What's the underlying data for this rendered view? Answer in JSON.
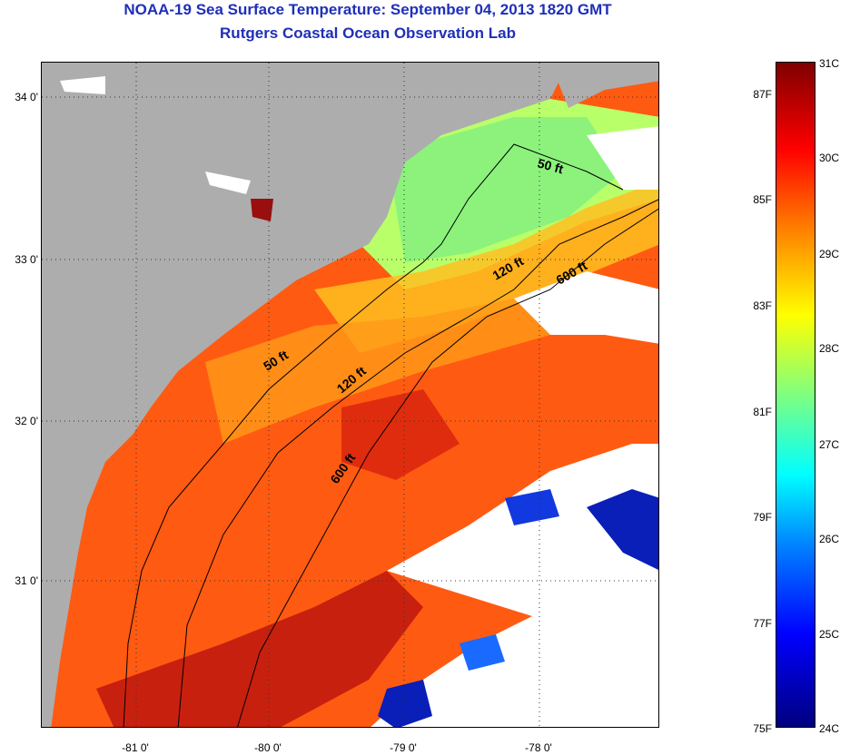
{
  "header": {
    "title": "NOAA-19 Sea Surface Temperature:  September 04, 2013 1820 GMT",
    "subtitle": "Rutgers Coastal Ocean Observation Lab"
  },
  "map": {
    "lat_ticks": [
      "34 0'",
      "33 0'",
      "32 0'",
      "31 0'"
    ],
    "lon_ticks": [
      "-81 0'",
      "-80 0'",
      "-79 0'",
      "-78 0'"
    ],
    "contour_labels": [
      "50 ft",
      "120 ft",
      "600 ft",
      "50 ft",
      "120 ft",
      "600 ft"
    ],
    "colors": {
      "land": "#adadad",
      "cloud": "#ffffff",
      "contour": "#000000"
    }
  },
  "colorbar": {
    "celsius_labels": [
      "31C",
      "30C",
      "29C",
      "28C",
      "27C",
      "26C",
      "25C",
      "24C"
    ],
    "fahrenheit_labels": [
      "87F",
      "85F",
      "83F",
      "81F",
      "79F",
      "77F",
      "75F"
    ],
    "colormap_stops": [
      "#00007f",
      "#0000ff",
      "#007fff",
      "#00ffff",
      "#7fff7f",
      "#ffff00",
      "#ff7f00",
      "#ff0000",
      "#7f0000"
    ]
  }
}
